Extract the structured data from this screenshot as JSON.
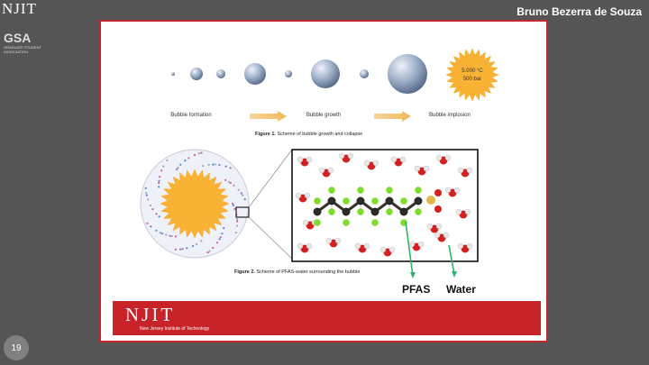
{
  "header": {
    "logo": "NJIT",
    "gsa_logo": "GSA",
    "gsa_subtitle": "GRADUATE STUDENT ASSOCIATION",
    "author": "Bruno Bezerra de Souza"
  },
  "figure1": {
    "stage_formation": "Bubble formation",
    "stage_growth": "Bubble growth",
    "stage_implosion": "Bubble implosion",
    "temperature": "5.000 °C",
    "pressure": "500 bar",
    "caption_bold": "Figure 1.",
    "caption_text": " Scheme of bubble growth and collapse"
  },
  "figure2": {
    "label_pfas": "PFAS",
    "label_water": "Water",
    "caption_bold": "Figure 2.",
    "caption_text": " Scheme of PFAS-water surrounding  the bubble"
  },
  "footer": {
    "njit_logo": "NJIT",
    "njit_name": "New Jersey Institute of Technology"
  },
  "slide_number": "19",
  "colors": {
    "border_red": "#c0282d",
    "bar_red": "#c72328",
    "sun_orange": "#f9b233",
    "arrow": "#f4c06e",
    "label_green": "#2db36b"
  }
}
